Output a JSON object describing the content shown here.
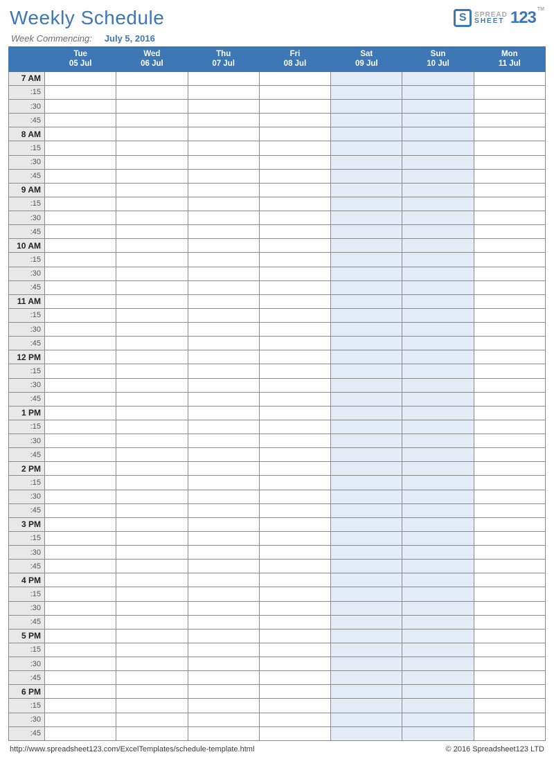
{
  "colors": {
    "accent": "#3d77b6",
    "title": "#3d77b6",
    "headerBg": "#3d77b6",
    "headerText": "#ffffff",
    "timeColBg": "#e8e8e8",
    "weekendBg": "#e4edf7",
    "gridBorder": "#8a8a8a",
    "logoAux": "#a7a7a7"
  },
  "title": "Weekly Schedule",
  "logo": {
    "line1": "SPREAD",
    "line2": "SHEET",
    "digits": "123",
    "tm": "TM"
  },
  "subheader": {
    "label": "Week Commencing:",
    "value": "July 5, 2016"
  },
  "days": [
    {
      "dow": "Tue",
      "date": "05 Jul",
      "weekend": false
    },
    {
      "dow": "Wed",
      "date": "06 Jul",
      "weekend": false
    },
    {
      "dow": "Thu",
      "date": "07 Jul",
      "weekend": false
    },
    {
      "dow": "Fri",
      "date": "08 Jul",
      "weekend": false
    },
    {
      "dow": "Sat",
      "date": "09 Jul",
      "weekend": true
    },
    {
      "dow": "Sun",
      "date": "10 Jul",
      "weekend": true
    },
    {
      "dow": "Mon",
      "date": "11 Jul",
      "weekend": false
    }
  ],
  "hours": [
    "7 AM",
    "8 AM",
    "9 AM",
    "10 AM",
    "11 AM",
    "12 PM",
    "1 PM",
    "2 PM",
    "3 PM",
    "4 PM",
    "5 PM",
    "6 PM"
  ],
  "subdivisions": [
    ":15",
    ":30",
    ":45"
  ],
  "footer": {
    "url": "http://www.spreadsheet123.com/ExcelTemplates/schedule-template.html",
    "copyright": "© 2016 Spreadsheet123 LTD"
  }
}
